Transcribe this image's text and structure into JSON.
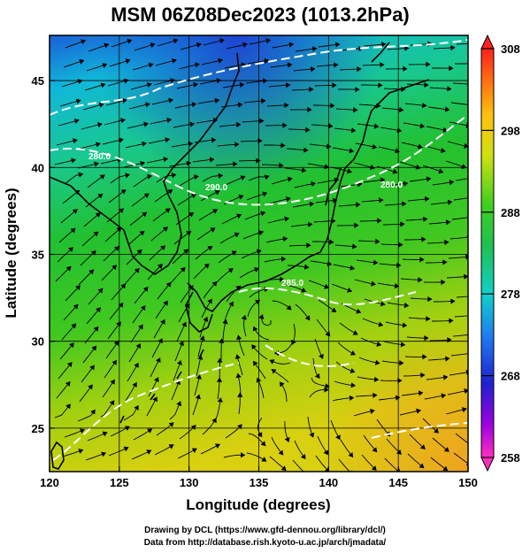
{
  "title": "MSM 06Z08Dec2023 (1013.2hPa)",
  "x_axis": {
    "label": "Longitude (degrees)",
    "range": [
      120,
      150
    ],
    "ticks": [
      120,
      125,
      130,
      135,
      140,
      145,
      150
    ]
  },
  "y_axis": {
    "label": "Latitude  (degrees)",
    "range": [
      22.5,
      47.6
    ],
    "ticks": [
      25,
      30,
      35,
      40,
      45
    ]
  },
  "colorbar": {
    "range": [
      258,
      308
    ],
    "ticks": [
      258,
      268,
      278,
      288,
      298,
      308
    ],
    "extend": "both"
  },
  "contour_labels": [
    "290.0",
    "285.0",
    "280.0",
    "280.0"
  ],
  "credits": {
    "line1": "Drawing by DCL (https://www.gfd-dennou.org/library/dcl/)",
    "line2": "Data from http://database.rish.kyoto-u.ac.jp/arch/jmadata/"
  },
  "colors": {
    "cold": "#1f5fd8",
    "mid": "#22c022",
    "warm": "#f0a020",
    "contour": "#ffffff",
    "coast": "#000000"
  }
}
